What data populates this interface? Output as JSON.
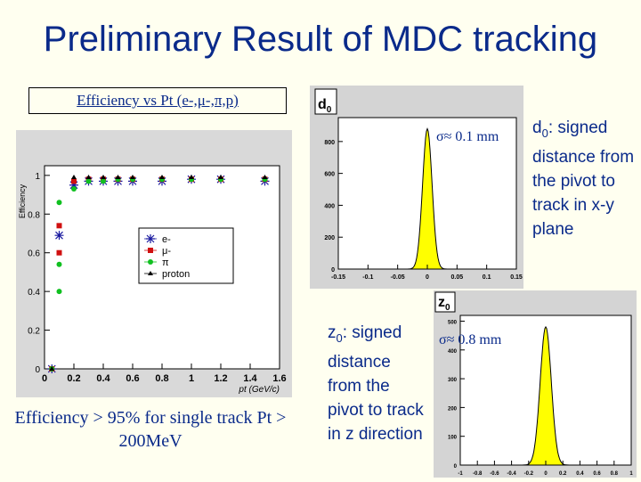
{
  "title": "Preliminary Result of MDC tracking",
  "efficiency_label": "Efficiency vs Pt  (e-,μ-,π,p)",
  "efficiency_caption": "Efficiency > 95% for single track Pt > 200MeV",
  "d0": {
    "sigma_label": "σ≈ 0.1 mm",
    "description_prefix": "d",
    "description_sub": "0",
    "description_rest": ": signed distance from the pivot to track in x-y plane",
    "panel_title": "d0"
  },
  "z0": {
    "sigma_label": "σ≈ 0.8 mm",
    "description_prefix": "z",
    "description_sub": "0",
    "description_rest": ": signed distance from the pivot to track in z direction",
    "panel_title": "z0"
  },
  "colors": {
    "title": "#0a2a8a",
    "fill": "#ffff00",
    "electron": "#1a1aa0",
    "muon": "#d01010",
    "pion": "#10c020",
    "proton": "#000000"
  },
  "chart_data": [
    {
      "type": "scatter",
      "title": "",
      "xlabel": "pt (GeV/c)",
      "ylabel": "Efficiency",
      "xlim": [
        0,
        1.6
      ],
      "ylim": [
        0,
        1.05
      ],
      "xticks": [
        "0",
        "0.2",
        "0.4",
        "0.6",
        "0.8",
        "1",
        "1.2",
        "1.4",
        "1.6"
      ],
      "yticks": [
        "0",
        "0.2",
        "0.4",
        "0.6",
        "0.8",
        "1"
      ],
      "legend_position": "center-right",
      "series": [
        {
          "name": "e-",
          "marker": "star",
          "points": [
            [
              0.05,
              0.0
            ],
            [
              0.1,
              0.69
            ],
            [
              0.2,
              0.95
            ],
            [
              0.3,
              0.97
            ],
            [
              0.4,
              0.97
            ],
            [
              0.5,
              0.97
            ],
            [
              0.6,
              0.97
            ],
            [
              0.8,
              0.97
            ],
            [
              1.0,
              0.98
            ],
            [
              1.2,
              0.98
            ],
            [
              1.5,
              0.97
            ]
          ]
        },
        {
          "name": "μ-",
          "marker": "square",
          "points": [
            [
              0.05,
              0.0
            ],
            [
              0.1,
              0.6
            ],
            [
              0.1,
              0.74
            ],
            [
              0.2,
              0.97
            ],
            [
              0.3,
              0.98
            ],
            [
              0.4,
              0.98
            ],
            [
              0.5,
              0.98
            ],
            [
              0.6,
              0.98
            ],
            [
              0.8,
              0.98
            ],
            [
              1.0,
              0.98
            ],
            [
              1.2,
              0.98
            ],
            [
              1.5,
              0.98
            ]
          ]
        },
        {
          "name": "π",
          "marker": "circle",
          "points": [
            [
              0.05,
              0.0
            ],
            [
              0.1,
              0.4
            ],
            [
              0.1,
              0.54
            ],
            [
              0.1,
              0.86
            ],
            [
              0.2,
              0.93
            ],
            [
              0.3,
              0.97
            ],
            [
              0.4,
              0.97
            ],
            [
              0.5,
              0.98
            ],
            [
              0.6,
              0.98
            ],
            [
              0.8,
              0.98
            ],
            [
              1.0,
              0.98
            ],
            [
              1.2,
              0.98
            ],
            [
              1.5,
              0.98
            ]
          ]
        },
        {
          "name": "proton",
          "marker": "triangle",
          "points": [
            [
              0.05,
              0.0
            ],
            [
              0.2,
              0.99
            ],
            [
              0.3,
              0.99
            ],
            [
              0.4,
              0.99
            ],
            [
              0.5,
              0.99
            ],
            [
              0.6,
              0.99
            ],
            [
              0.8,
              0.99
            ],
            [
              1.0,
              0.99
            ],
            [
              1.2,
              0.99
            ],
            [
              1.5,
              0.99
            ]
          ]
        }
      ]
    },
    {
      "type": "area",
      "title": "d0",
      "xlabel": "",
      "ylabel": "",
      "xlim": [
        -0.15,
        0.15
      ],
      "ylim": [
        0,
        950
      ],
      "xticks": [
        "-0.15",
        "-0.1",
        "-0.05",
        "0",
        "0.05",
        "0.1",
        "0.15"
      ],
      "yticks": [
        "0",
        "200",
        "400",
        "600",
        "800"
      ],
      "gaussian": {
        "mean": 0.0,
        "sigma": 0.008,
        "peak": 880
      }
    },
    {
      "type": "area",
      "title": "z0",
      "xlabel": "",
      "ylabel": "",
      "xlim": [
        -1,
        1
      ],
      "ylim": [
        0,
        520
      ],
      "xticks": [
        "-1",
        "-0.8",
        "-0.6",
        "-0.4",
        "-0.2",
        "0",
        "0.2",
        "0.4",
        "0.6",
        "0.8",
        "1"
      ],
      "yticks": [
        "0",
        "100",
        "200",
        "300",
        "400",
        "500"
      ],
      "gaussian": {
        "mean": 0.0,
        "sigma": 0.065,
        "peak": 480
      }
    }
  ]
}
